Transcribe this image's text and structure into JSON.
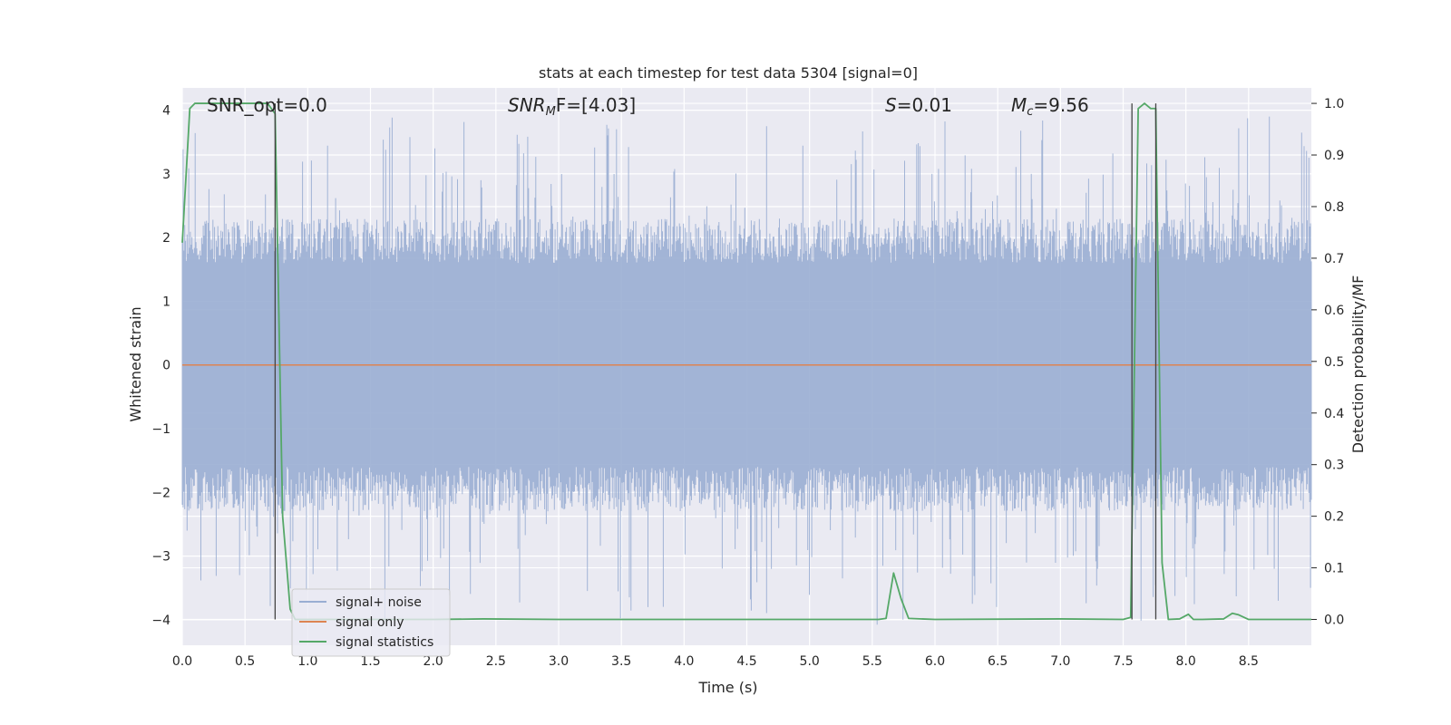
{
  "chart_data": {
    "type": "line",
    "title": "stats at each timestep for test data 5304 [signal=0]",
    "xlabel": "Time (s)",
    "ylabel_left": "Whitened strain",
    "ylabel_right": "Detection probability/MF",
    "xlim": [
      0.0,
      9.0
    ],
    "ylim_left": [
      -4.4,
      4.35
    ],
    "ylim_right": [
      -0.05,
      1.03
    ],
    "xticks": [
      "0.0",
      "0.5",
      "1.0",
      "1.5",
      "2.0",
      "2.5",
      "3.0",
      "3.5",
      "4.0",
      "4.5",
      "5.0",
      "5.5",
      "6.0",
      "6.5",
      "7.0",
      "7.5",
      "8.0",
      "8.5"
    ],
    "yticks_left": [
      "−4",
      "−3",
      "−2",
      "−1",
      "0",
      "1",
      "2",
      "3",
      "4"
    ],
    "yticks_right": [
      "0.0",
      "0.1",
      "0.2",
      "0.3",
      "0.4",
      "0.5",
      "0.6",
      "0.7",
      "0.8",
      "0.9",
      "1.0"
    ],
    "grid": true,
    "annotations": {
      "snr_opt": "SNR_opt=0.0",
      "snr_mf_sym": "SNR",
      "snr_mf_sub": "M",
      "snr_mf_rest": "F=[4.03]",
      "s_sym": "S",
      "s_rest": "=0.01",
      "mc_sym": "M",
      "mc_sub": "c",
      "mc_rest": "=9.56"
    },
    "vlines_x": [
      0.74,
      7.57,
      7.76
    ],
    "series": [
      {
        "name": "signal+ noise",
        "axis": "left",
        "color": "#9aaed3",
        "envelope_approx": {
          "typical_max": 1.6,
          "typical_min": -1.6,
          "peak_max": 3.9,
          "peak_min": -4.0
        }
      },
      {
        "name": "signal only",
        "axis": "left",
        "color": "#dd8452",
        "x": [
          0.0,
          9.0
        ],
        "y": [
          0.0,
          0.0
        ]
      },
      {
        "name": "signal statistics",
        "axis": "right",
        "color": "#55a868",
        "x": [
          0.0,
          0.06,
          0.1,
          0.3,
          0.5,
          0.68,
          0.74,
          0.8,
          0.86,
          0.9,
          1.0,
          2.0,
          2.4,
          3.0,
          5.4,
          5.55,
          5.61,
          5.67,
          5.73,
          5.79,
          6.0,
          7.0,
          7.5,
          7.56,
          7.62,
          7.67,
          7.72,
          7.76,
          7.81,
          7.86,
          7.95,
          8.02,
          8.06,
          8.13,
          8.3,
          8.37,
          8.42,
          8.5,
          9.0
        ],
        "y": [
          0.73,
          0.99,
          1.0,
          1.0,
          1.0,
          1.0,
          0.98,
          0.2,
          0.02,
          0.0,
          0.0,
          0.0,
          0.001,
          0.0,
          0.0,
          0.0,
          0.002,
          0.09,
          0.04,
          0.002,
          0.0,
          0.001,
          0.0,
          0.004,
          0.99,
          1.0,
          0.99,
          0.99,
          0.11,
          0.0,
          0.001,
          0.01,
          0.0,
          0.0,
          0.001,
          0.012,
          0.009,
          0.0,
          0.0
        ]
      }
    ],
    "legend_position": "lower-left"
  }
}
